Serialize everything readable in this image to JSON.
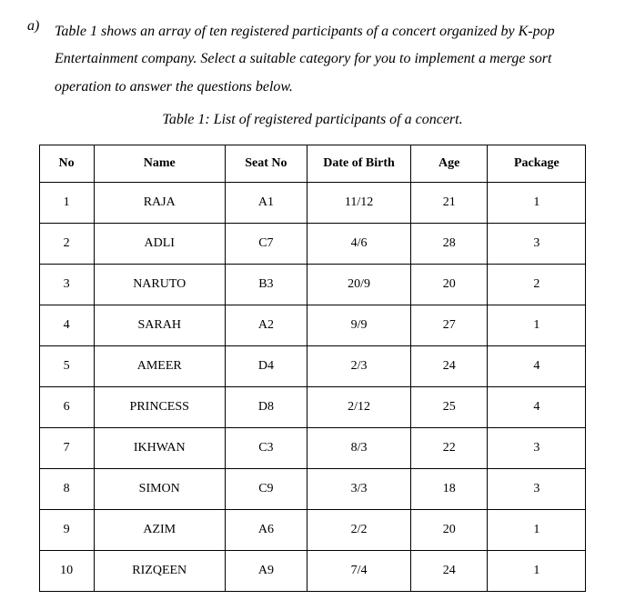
{
  "question": {
    "label": "a)",
    "text": "Table 1 shows an array of ten registered participants of a concert organized by K-pop Entertainment company. Select a suitable category for you to implement a merge sort operation to answer the questions below."
  },
  "caption": "Table 1: List of registered participants of a concert.",
  "table": {
    "columns": [
      "No",
      "Name",
      "Seat No",
      "Date of Birth",
      "Age",
      "Package"
    ],
    "col_classes": [
      "col-no",
      "col-name",
      "col-seat",
      "col-dob",
      "col-age",
      "col-package"
    ],
    "rows": [
      [
        "1",
        "RAJA",
        "A1",
        "11/12",
        "21",
        "1"
      ],
      [
        "2",
        "ADLI",
        "C7",
        "4/6",
        "28",
        "3"
      ],
      [
        "3",
        "NARUTO",
        "B3",
        "20/9",
        "20",
        "2"
      ],
      [
        "4",
        "SARAH",
        "A2",
        "9/9",
        "27",
        "1"
      ],
      [
        "5",
        "AMEER",
        "D4",
        "2/3",
        "24",
        "4"
      ],
      [
        "6",
        "PRINCESS",
        "D8",
        "2/12",
        "25",
        "4"
      ],
      [
        "7",
        "IKHWAN",
        "C3",
        "8/3",
        "22",
        "3"
      ],
      [
        "8",
        "SIMON",
        "C9",
        "3/3",
        "18",
        "3"
      ],
      [
        "9",
        "AZIM",
        "A6",
        "2/2",
        "20",
        "1"
      ],
      [
        "10",
        "RIZQEEN",
        "A9",
        "7/4",
        "24",
        "1"
      ]
    ]
  },
  "styling": {
    "background_color": "#ffffff",
    "text_color": "#000000",
    "border_color": "#000000",
    "font_family": "Times New Roman",
    "question_fontsize": 16,
    "caption_fontsize": 16,
    "table_fontsize": 14,
    "question_style": "italic",
    "caption_style": "italic"
  }
}
